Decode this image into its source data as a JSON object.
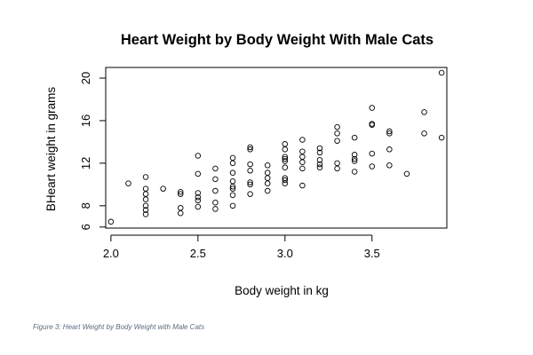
{
  "chart_data": {
    "type": "scatter",
    "title": "Heart Weight by Body Weight With Male Cats",
    "xlabel": "Body weight in kg",
    "ylabel": "BHeart weight in grams",
    "xlim": [
      1.97,
      3.93
    ],
    "ylim": [
      5.9,
      21.0
    ],
    "xticks": [
      2.0,
      2.5,
      3.0,
      3.5
    ],
    "xtick_labels": [
      "2.0",
      "2.5",
      "3.0",
      "3.5"
    ],
    "yticks": [
      6,
      8,
      12,
      16,
      20
    ],
    "ytick_labels": [
      "6",
      "8",
      "12",
      "16",
      "20"
    ],
    "grid": false,
    "legend": "none",
    "marker": "open-circle",
    "color": "#000000",
    "points": [
      [
        2.0,
        6.5
      ],
      [
        2.1,
        10.1
      ],
      [
        2.2,
        7.2
      ],
      [
        2.2,
        7.6
      ],
      [
        2.2,
        8.0
      ],
      [
        2.2,
        8.6
      ],
      [
        2.2,
        9.1
      ],
      [
        2.2,
        9.6
      ],
      [
        2.2,
        10.7
      ],
      [
        2.3,
        9.6
      ],
      [
        2.4,
        7.3
      ],
      [
        2.4,
        7.8
      ],
      [
        2.4,
        9.1
      ],
      [
        2.4,
        9.3
      ],
      [
        2.5,
        7.9
      ],
      [
        2.5,
        8.5
      ],
      [
        2.5,
        8.8
      ],
      [
        2.5,
        9.2
      ],
      [
        2.5,
        11.0
      ],
      [
        2.5,
        12.7
      ],
      [
        2.6,
        7.7
      ],
      [
        2.6,
        8.3
      ],
      [
        2.6,
        9.4
      ],
      [
        2.6,
        10.5
      ],
      [
        2.6,
        11.5
      ],
      [
        2.7,
        8.0
      ],
      [
        2.7,
        9.0
      ],
      [
        2.7,
        9.6
      ],
      [
        2.7,
        9.8
      ],
      [
        2.7,
        10.3
      ],
      [
        2.7,
        11.1
      ],
      [
        2.7,
        12.0
      ],
      [
        2.7,
        12.5
      ],
      [
        2.8,
        9.1
      ],
      [
        2.8,
        10.0
      ],
      [
        2.8,
        10.2
      ],
      [
        2.8,
        11.3
      ],
      [
        2.8,
        11.9
      ],
      [
        2.8,
        13.3
      ],
      [
        2.8,
        13.5
      ],
      [
        2.9,
        9.4
      ],
      [
        2.9,
        10.1
      ],
      [
        2.9,
        10.6
      ],
      [
        2.9,
        11.1
      ],
      [
        2.9,
        11.8
      ],
      [
        3.0,
        10.1
      ],
      [
        3.0,
        10.4
      ],
      [
        3.0,
        10.6
      ],
      [
        3.0,
        11.6
      ],
      [
        3.0,
        12.2
      ],
      [
        3.0,
        12.4
      ],
      [
        3.0,
        12.6
      ],
      [
        3.0,
        13.3
      ],
      [
        3.0,
        13.8
      ],
      [
        3.1,
        9.9
      ],
      [
        3.1,
        11.5
      ],
      [
        3.1,
        12.1
      ],
      [
        3.1,
        12.6
      ],
      [
        3.1,
        13.1
      ],
      [
        3.1,
        14.2
      ],
      [
        3.2,
        11.6
      ],
      [
        3.2,
        11.9
      ],
      [
        3.2,
        12.3
      ],
      [
        3.2,
        13.0
      ],
      [
        3.2,
        13.4
      ],
      [
        3.3,
        11.5
      ],
      [
        3.3,
        12.0
      ],
      [
        3.3,
        14.1
      ],
      [
        3.3,
        14.8
      ],
      [
        3.3,
        15.4
      ],
      [
        3.4,
        11.2
      ],
      [
        3.4,
        12.2
      ],
      [
        3.4,
        12.4
      ],
      [
        3.4,
        12.8
      ],
      [
        3.4,
        14.4
      ],
      [
        3.5,
        11.7
      ],
      [
        3.5,
        12.9
      ],
      [
        3.5,
        15.6
      ],
      [
        3.5,
        15.7
      ],
      [
        3.5,
        17.2
      ],
      [
        3.6,
        11.8
      ],
      [
        3.6,
        13.3
      ],
      [
        3.6,
        14.8
      ],
      [
        3.6,
        15.0
      ],
      [
        3.7,
        11.0
      ],
      [
        3.8,
        14.8
      ],
      [
        3.8,
        16.8
      ],
      [
        3.9,
        14.4
      ],
      [
        3.9,
        20.5
      ]
    ]
  },
  "caption": "Figure 3: Heart Weight by Body Weight with Male Cats"
}
